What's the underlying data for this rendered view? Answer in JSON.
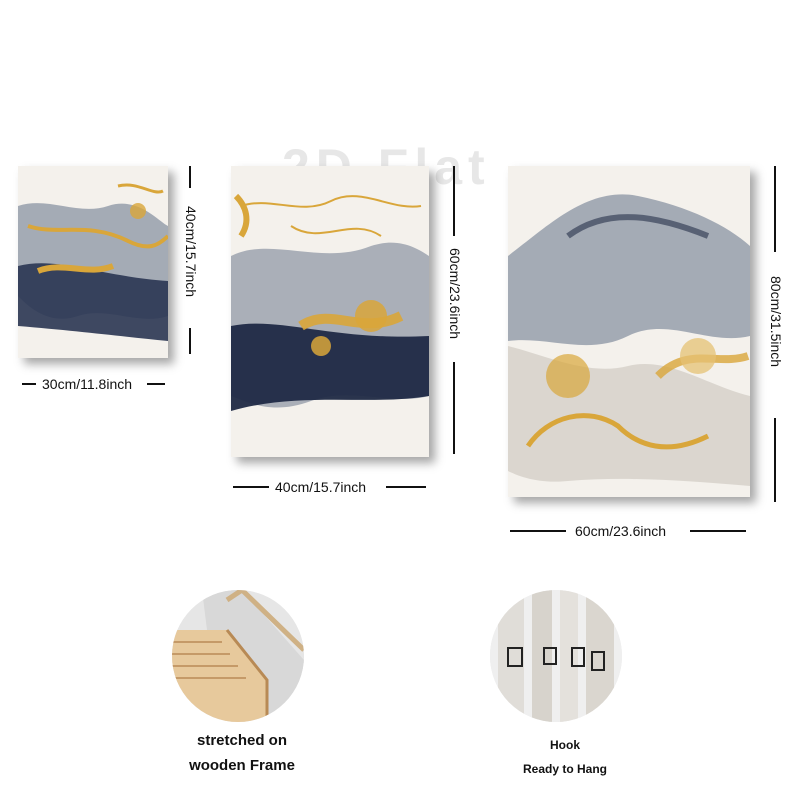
{
  "watermark": "2D Flat",
  "paintings": [
    {
      "width_label": "30cm/11.8inch",
      "height_label": "40cm/15.7inch"
    },
    {
      "width_label": "40cm/15.7inch",
      "height_label": "60cm/23.6inch"
    },
    {
      "width_label": "60cm/23.6inch",
      "height_label": "80cm/31.5inch"
    }
  ],
  "details": {
    "frame": {
      "line1": "stretched on",
      "line2": "wooden Frame"
    },
    "hook": {
      "line1": "Hook",
      "line2": "Ready to Hang"
    }
  },
  "colors": {
    "navy": "#26304a",
    "gold": "#d9a63a",
    "gray": "#8a93a3",
    "cream": "#f4f1ec",
    "wood": "#e7c99c"
  }
}
